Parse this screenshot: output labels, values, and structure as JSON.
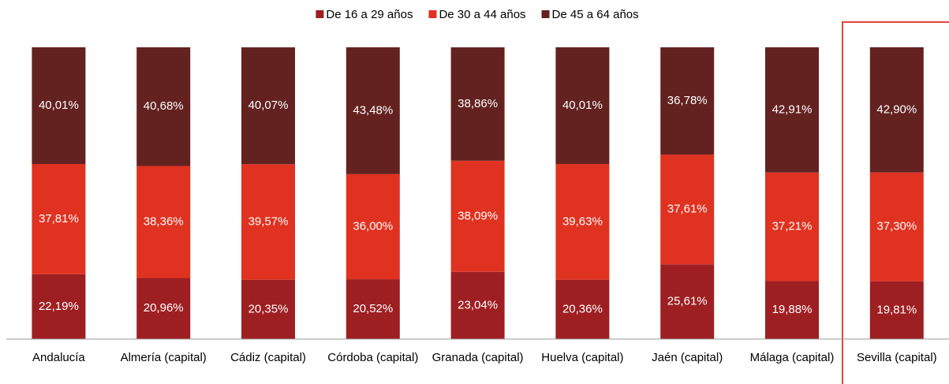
{
  "chart_data": {
    "type": "stacked_bar",
    "categories": [
      "Andalucía",
      "Almería (capital)",
      "Cádiz (capital)",
      "Córdoba (capital)",
      "Granada (capital)",
      "Huelva (capital)",
      "Jaén (capital)",
      "Málaga (capital)",
      "Sevilla (capital)"
    ],
    "series": [
      {
        "name": "De 16 a 29 años",
        "color": "#9e1f22",
        "values": [
          22.19,
          20.96,
          20.35,
          20.52,
          23.04,
          20.36,
          25.61,
          19.88,
          19.81
        ],
        "value_labels": [
          "22,19%",
          "20,96%",
          "20,35%",
          "20,52%",
          "23,04%",
          "20,36%",
          "25,61%",
          "19,88%",
          "19,81%"
        ]
      },
      {
        "name": "De 30 a 44 años",
        "color": "#e03220",
        "values": [
          37.81,
          38.36,
          39.57,
          36.0,
          38.09,
          39.63,
          37.61,
          37.21,
          37.3
        ],
        "value_labels": [
          "37,81%",
          "38,36%",
          "39,57%",
          "36,00%",
          "38,09%",
          "39,63%",
          "37,61%",
          "37,21%",
          "37,30%"
        ]
      },
      {
        "name": "De 45 a 64 años",
        "color": "#632220",
        "values": [
          40.01,
          40.68,
          40.07,
          43.48,
          38.86,
          40.01,
          36.78,
          42.91,
          42.9
        ],
        "value_labels": [
          "40,01%",
          "40,68%",
          "40,07%",
          "43,48%",
          "38,86%",
          "40,01%",
          "36,78%",
          "42,91%",
          "42,90%"
        ]
      }
    ],
    "ylim": [
      0,
      100
    ],
    "legend": "top"
  }
}
